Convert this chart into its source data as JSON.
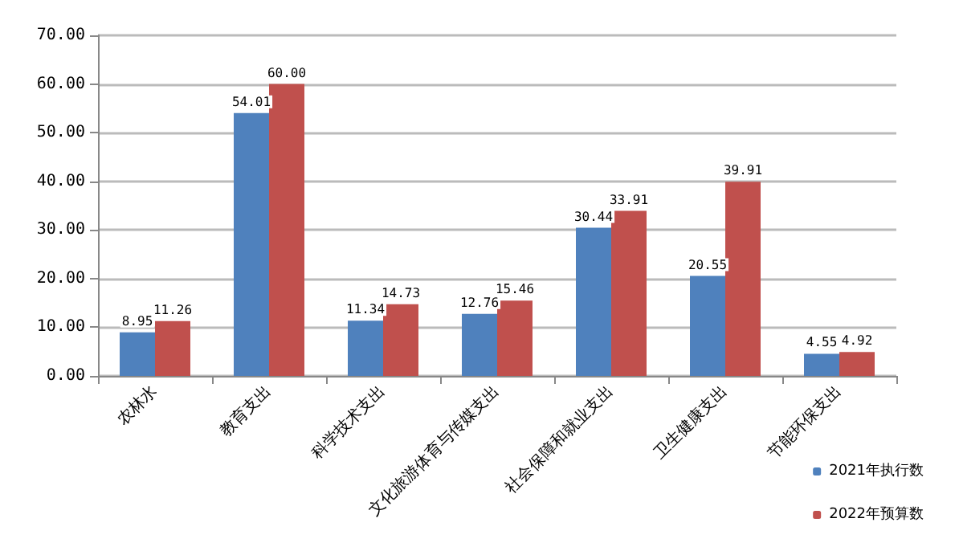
{
  "chart_data": {
    "type": "bar",
    "categories": [
      "农林水",
      "教育支出",
      "科学技术支出",
      "文化旅游体育与传媒支出",
      "社会保障和就业支出",
      "卫生健康支出",
      "节能环保支出"
    ],
    "series": [
      {
        "name": "2021年执行数",
        "color": "#4f81bd",
        "values": [
          8.95,
          54.01,
          11.34,
          12.76,
          30.44,
          20.55,
          4.55
        ],
        "value_labels": [
          "8.95",
          "54.01",
          "11.34",
          "12.76",
          "30.44",
          "20.55",
          "4.55"
        ]
      },
      {
        "name": "2022年预算数",
        "color": "#c0504d",
        "values": [
          11.26,
          60.0,
          14.73,
          15.46,
          33.91,
          39.91,
          4.92
        ],
        "value_labels": [
          "11.26",
          "60.00",
          "14.73",
          "15.46",
          "33.91",
          "39.91",
          "4.92"
        ]
      }
    ],
    "ylim": [
      0,
      70
    ],
    "yticks": [
      {
        "value": 0,
        "label": "0.00"
      },
      {
        "value": 10,
        "label": "10.00"
      },
      {
        "value": 20,
        "label": "20.00"
      },
      {
        "value": 30,
        "label": "30.00"
      },
      {
        "value": 40,
        "label": "40.00"
      },
      {
        "value": 50,
        "label": "50.00"
      },
      {
        "value": 60,
        "label": "60.00"
      },
      {
        "value": 70,
        "label": "70.00"
      }
    ],
    "grid": "y",
    "legend": "bottom right"
  }
}
